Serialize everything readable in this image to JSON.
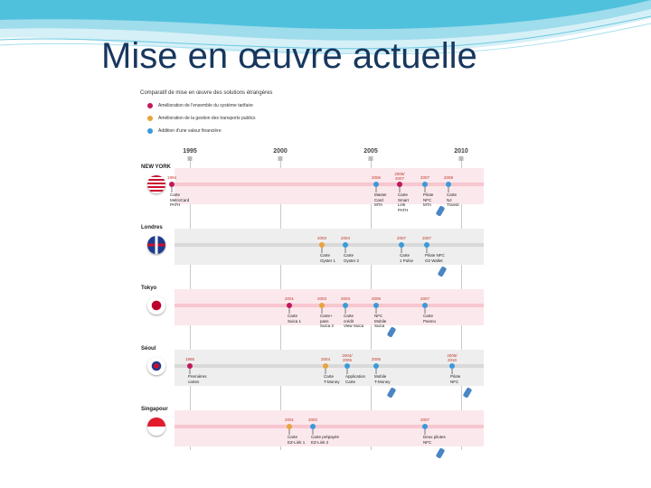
{
  "page": {
    "title": "Mise en œuvre actuelle"
  },
  "figure": {
    "title": "Comparatif de mise en œuvre des solutions étrangères",
    "legend": [
      {
        "label": "Amélioration de l'ensemble du système tarifaire",
        "color": "#c2185b"
      },
      {
        "label": "Amélioration de la gestion des transports publics",
        "color": "#e8a33d"
      },
      {
        "label": "Addition d'une valeur financière",
        "color": "#3a9ad9"
      }
    ],
    "years": [
      "1995",
      "2000",
      "2005",
      "2010"
    ],
    "cities": [
      {
        "name": "NEW YORK",
        "band": "#f7c6cf",
        "events": [
          {
            "year": "1994",
            "t": 1994,
            "type": 0,
            "label": "Carte\nMetroCard\nPATH"
          },
          {
            "year": "2006",
            "t": 2005.3,
            "type": 2,
            "label": "Master\nCard\nMTA"
          },
          {
            "year": "2006/\n2007",
            "t": 2006.6,
            "type": 0,
            "label": "Carte\nSmart\nLink\nPATH"
          },
          {
            "year": "2007",
            "t": 2008.0,
            "type": 2,
            "label": "Pilote\nNFC\nMTA",
            "phone": true
          },
          {
            "year": "2008",
            "t": 2009.3,
            "type": 2,
            "label": "Carte\nNJ\nTransit"
          }
        ]
      },
      {
        "name": "Londres",
        "band": "#d9d9d9",
        "events": [
          {
            "year": "2003",
            "t": 2002.3,
            "type": 1,
            "label": "Carte\nOyster 1"
          },
          {
            "year": "2004",
            "t": 2003.6,
            "type": 2,
            "label": "Carte\nOyster 2"
          },
          {
            "year": "2007",
            "t": 2006.7,
            "type": 2,
            "label": "Carte\n1 Pulse"
          },
          {
            "year": "2007",
            "t": 2008.1,
            "type": 2,
            "label": "Pilote NFC\nO2 Wallet",
            "phone": true
          }
        ]
      },
      {
        "name": "Tokyo",
        "band": "#f7c6cf",
        "events": [
          {
            "year": "2001",
            "t": 2000.5,
            "type": 0,
            "label": "Carte\nSuica 1"
          },
          {
            "year": "2003",
            "t": 2002.3,
            "type": 1,
            "label": "Carte+\npass\nSuica 2"
          },
          {
            "year": "2003",
            "t": 2003.6,
            "type": 2,
            "label": "Carte\ncrédit\nView Suica"
          },
          {
            "year": "2006",
            "t": 2005.3,
            "type": 2,
            "label": "NFC\nMobile\nSuica",
            "phone": true
          },
          {
            "year": "2007",
            "t": 2008.0,
            "type": 2,
            "label": "Carte\nPasmo"
          }
        ]
      },
      {
        "name": "Séoul",
        "band": "#d9d9d9",
        "events": [
          {
            "year": "1995",
            "t": 1995.0,
            "type": 0,
            "label": "Premières\ncartes"
          },
          {
            "year": "2004",
            "t": 2002.5,
            "type": 1,
            "label": "Carte\nT-Money"
          },
          {
            "year": "2004/\n2005",
            "t": 2003.7,
            "type": 2,
            "label": "Application\nCarte"
          },
          {
            "year": "2006",
            "t": 2005.3,
            "type": 2,
            "label": "Mobile\nT-Money",
            "phone": true
          },
          {
            "year": "2009/\n2010",
            "t": 2009.5,
            "type": 2,
            "label": "Pilote\nNFC",
            "phone": true
          }
        ]
      },
      {
        "name": "Singapour",
        "band": "#f7c6cf",
        "events": [
          {
            "year": "2001",
            "t": 2000.5,
            "type": 1,
            "label": "Carte\nEZ-Link 1"
          },
          {
            "year": "2002",
            "t": 2001.8,
            "type": 2,
            "label": "Carte prépayée\nEZ-Link 2"
          },
          {
            "year": "2007",
            "t": 2008.0,
            "type": 2,
            "label": "Deux pilotes\nNFC",
            "phone": true
          }
        ]
      }
    ]
  }
}
